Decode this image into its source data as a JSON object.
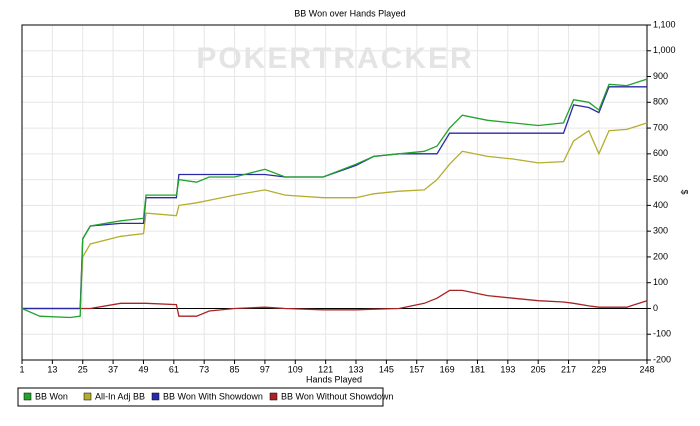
{
  "chart_data": {
    "type": "line",
    "title": "BB Won over Hands Played",
    "watermark": "POKERTRACKER",
    "x_label": "Hands Played",
    "y_label": "$",
    "x": [
      1,
      8,
      20,
      24,
      25,
      28,
      40,
      49,
      50,
      62,
      63,
      70,
      75,
      85,
      97,
      105,
      120,
      133,
      140,
      150,
      160,
      165,
      170,
      175,
      185,
      195,
      205,
      215,
      219,
      225,
      229,
      233,
      240,
      248
    ],
    "series": [
      {
        "name": "BB Won",
        "color": "#22a32a",
        "values": [
          0,
          -30,
          -35,
          -30,
          270,
          320,
          340,
          350,
          440,
          440,
          500,
          490,
          510,
          510,
          540,
          510,
          510,
          560,
          590,
          600,
          610,
          630,
          700,
          750,
          730,
          720,
          710,
          720,
          810,
          800,
          770,
          870,
          865,
          890
        ]
      },
      {
        "name": "All-In Adj BB",
        "color": "#b5ad2e",
        "values": [
          0,
          0,
          0,
          0,
          200,
          250,
          280,
          290,
          370,
          360,
          400,
          410,
          420,
          440,
          460,
          440,
          430,
          430,
          445,
          455,
          460,
          500,
          560,
          610,
          590,
          580,
          565,
          570,
          650,
          690,
          600,
          690,
          695,
          720
        ]
      },
      {
        "name": "BB Won With Showdown",
        "color": "#2a2aa8",
        "values": [
          0,
          0,
          0,
          0,
          270,
          320,
          330,
          330,
          430,
          430,
          520,
          520,
          520,
          520,
          520,
          510,
          510,
          555,
          590,
          600,
          600,
          600,
          680,
          680,
          680,
          680,
          680,
          680,
          790,
          780,
          760,
          860,
          860,
          860
        ]
      },
      {
        "name": "BB Won Without Showdown",
        "color": "#a82424",
        "values": [
          0,
          0,
          0,
          0,
          0,
          0,
          20,
          20,
          20,
          15,
          -30,
          -30,
          -10,
          0,
          5,
          0,
          -5,
          -5,
          -3,
          0,
          20,
          40,
          70,
          70,
          50,
          40,
          30,
          25,
          20,
          10,
          5,
          5,
          5,
          30
        ]
      }
    ],
    "xlim": [
      1,
      248
    ],
    "xticks": [
      1,
      13,
      25,
      37,
      49,
      61,
      73,
      85,
      97,
      109,
      121,
      133,
      145,
      157,
      169,
      181,
      193,
      205,
      217,
      229,
      248
    ],
    "ylim": [
      -200,
      1100
    ],
    "yticks": [
      -200,
      -100,
      0,
      100,
      200,
      300,
      400,
      500,
      600,
      700,
      800,
      900,
      {
        "value": 1000,
        "label": "1,000"
      },
      {
        "value": 1100,
        "label": "1,100"
      }
    ],
    "grid": true,
    "legend": "bottom"
  }
}
